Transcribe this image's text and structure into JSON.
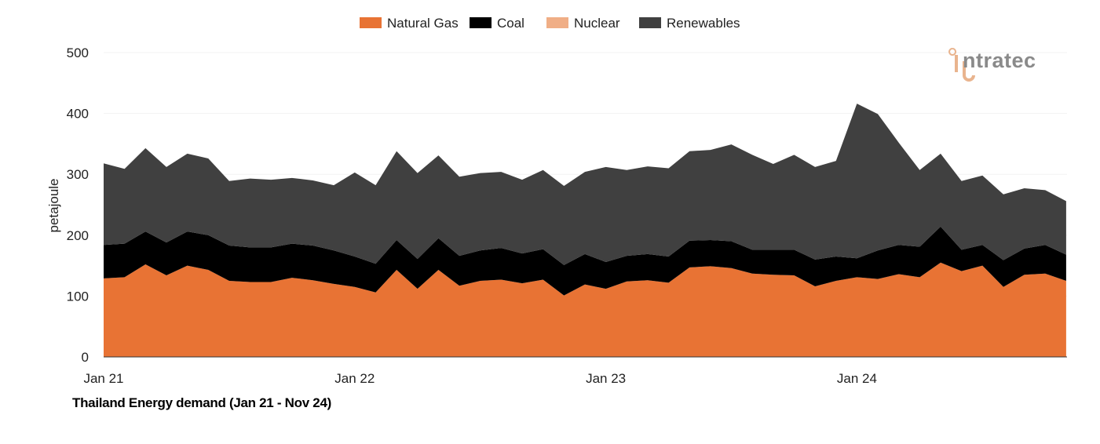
{
  "chart_data": {
    "type": "area",
    "stacked": true,
    "title": "Thailand Energy demand (Jan 21 - Nov 24)",
    "xlabel": "",
    "ylabel": "petajoule",
    "ylim": [
      0,
      500
    ],
    "yticks": [
      "0",
      "100",
      "200",
      "300",
      "400",
      "500"
    ],
    "ytick_values": [
      0,
      100,
      200,
      300,
      400,
      500
    ],
    "xtick_labels": [
      "Jan 21",
      "Jan 22",
      "Jan 23",
      "Jan 24"
    ],
    "xtick_indices": [
      0,
      12,
      24,
      36
    ],
    "x_start": "Jan 21",
    "x_end": "Nov 24",
    "grid": true,
    "legend_position": "top-center",
    "series": [
      {
        "name": "Natural Gas",
        "color": "#E87334",
        "values": [
          129,
          131,
          152,
          134,
          150,
          143,
          125,
          123,
          123,
          130,
          126,
          120,
          115,
          106,
          143,
          112,
          143,
          117,
          125,
          127,
          121,
          127,
          101,
          119,
          112,
          124,
          126,
          122,
          147,
          149,
          146,
          137,
          135,
          134,
          116,
          125,
          131,
          128,
          136,
          131,
          155,
          141,
          150,
          115,
          135,
          137,
          125
        ]
      },
      {
        "name": "Coal",
        "color": "#000000",
        "values": [
          55,
          55,
          54,
          54,
          56,
          57,
          58,
          57,
          57,
          56,
          57,
          55,
          50,
          47,
          49,
          49,
          52,
          49,
          50,
          52,
          49,
          50,
          50,
          50,
          44,
          42,
          43,
          43,
          44,
          43,
          44,
          39,
          41,
          42,
          44,
          40,
          31,
          47,
          48,
          50,
          59,
          35,
          34,
          44,
          43,
          47,
          43
        ]
      },
      {
        "name": "Nuclear",
        "color": "#F0AE86",
        "values": [
          0,
          0,
          0,
          0,
          0,
          0,
          0,
          0,
          0,
          0,
          0,
          0,
          0,
          0,
          0,
          0,
          0,
          0,
          0,
          0,
          0,
          0,
          0,
          0,
          0,
          0,
          0,
          0,
          0,
          0,
          0,
          0,
          0,
          0,
          0,
          0,
          0,
          0,
          0,
          0,
          0,
          0,
          0,
          0,
          0,
          0,
          0
        ]
      },
      {
        "name": "Renewables",
        "color": "#404040",
        "values": [
          134,
          123,
          137,
          124,
          128,
          126,
          106,
          113,
          111,
          108,
          107,
          107,
          138,
          129,
          146,
          141,
          136,
          130,
          127,
          125,
          121,
          130,
          130,
          135,
          156,
          141,
          144,
          145,
          147,
          148,
          159,
          156,
          141,
          156,
          152,
          157,
          254,
          224,
          168,
          126,
          120,
          113,
          114,
          108,
          99,
          90,
          88
        ]
      }
    ]
  },
  "logo": {
    "text": "intratec"
  }
}
